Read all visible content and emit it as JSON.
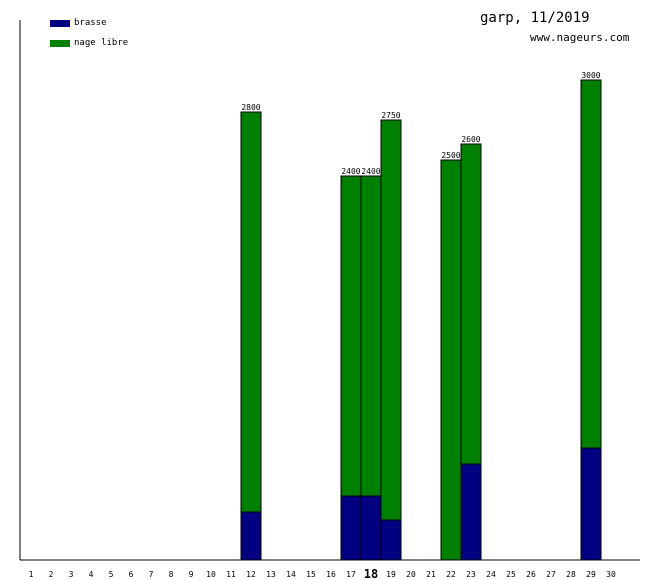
{
  "header": {
    "title": "garp, 11/2019",
    "url": "www.nageurs.com"
  },
  "legend": [
    {
      "label": "brasse",
      "color": "#000080"
    },
    {
      "label": "nage libre",
      "color": "#008000"
    }
  ],
  "chart_data": {
    "type": "bar",
    "stacked": true,
    "categories": [
      "1",
      "2",
      "3",
      "4",
      "5",
      "6",
      "7",
      "8",
      "9",
      "10",
      "11",
      "12",
      "13",
      "14",
      "15",
      "16",
      "17",
      "18",
      "19",
      "20",
      "21",
      "22",
      "23",
      "24",
      "25",
      "26",
      "27",
      "28",
      "29",
      "30"
    ],
    "highlight_category": "18",
    "series": [
      {
        "name": "brasse",
        "color": "#000080",
        "values": [
          0,
          0,
          0,
          0,
          0,
          0,
          0,
          0,
          0,
          0,
          0,
          300,
          0,
          0,
          0,
          0,
          400,
          400,
          250,
          0,
          0,
          0,
          600,
          0,
          0,
          0,
          0,
          0,
          700,
          0
        ]
      },
      {
        "name": "nage libre",
        "color": "#008000",
        "values": [
          0,
          0,
          0,
          0,
          0,
          0,
          0,
          0,
          0,
          0,
          0,
          2500,
          0,
          0,
          0,
          0,
          2000,
          2000,
          2500,
          0,
          0,
          2500,
          2000,
          0,
          0,
          0,
          0,
          0,
          2300,
          0
        ]
      }
    ],
    "totals": [
      null,
      null,
      null,
      null,
      null,
      null,
      null,
      null,
      null,
      null,
      null,
      "2800",
      null,
      null,
      null,
      null,
      "2400",
      "2400",
      "2750",
      null,
      null,
      "2500",
      "2600",
      null,
      null,
      null,
      null,
      null,
      "3000",
      null
    ],
    "ylim": [
      0,
      3500
    ],
    "grid": false,
    "legend_position": "top-left"
  }
}
